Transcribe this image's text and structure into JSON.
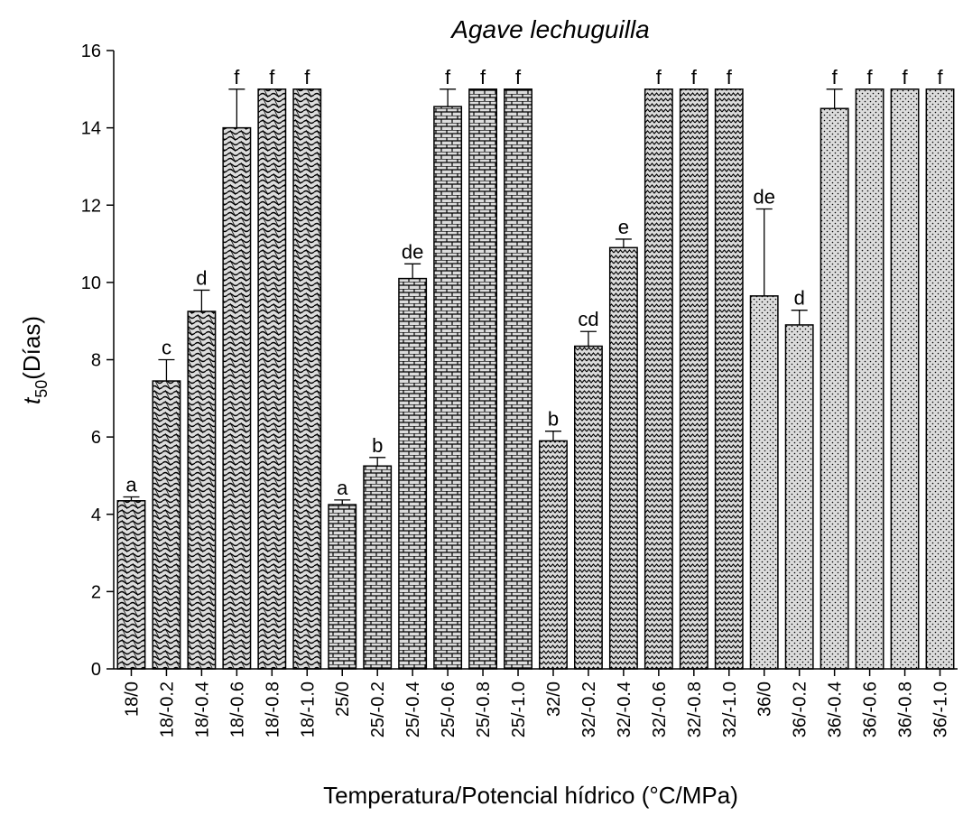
{
  "chart_data": {
    "type": "bar",
    "title": "Agave lechuguilla",
    "ylabel_main": "t",
    "ylabel_sub": "50",
    "ylabel_rest": "(Días)",
    "xlabel": "Temperatura/Potencial hídrico (°C/MPa)",
    "ylim": [
      0,
      16
    ],
    "yticks": [
      "0",
      "2",
      "4",
      "6",
      "8",
      "10",
      "12",
      "14",
      "16"
    ],
    "grid": false,
    "legend": "none",
    "categories": [
      "18/0",
      "18/-0.2",
      "18/-0.4",
      "18/-0.6",
      "18/-0.8",
      "18/-1.0",
      "25/0",
      "25/-0.2",
      "25/-0.4",
      "25/-0.6",
      "25/-0.8",
      "25/-1.0",
      "32/0",
      "32/-0.2",
      "32/-0.4",
      "32/-0.6",
      "32/-0.8",
      "32/-1.0",
      "36/0",
      "36/-0.2",
      "36/-0.4",
      "36/-0.6",
      "36/-0.8",
      "36/-1.0"
    ],
    "values": [
      4.35,
      7.45,
      9.25,
      14.0,
      15.0,
      15.0,
      4.25,
      5.25,
      10.1,
      14.55,
      15.0,
      15.0,
      5.9,
      8.35,
      10.9,
      15.0,
      15.0,
      15.0,
      9.65,
      8.9,
      14.5,
      15.0,
      15.0,
      15.0
    ],
    "errors": [
      0.1,
      0.55,
      0.55,
      1.0,
      0,
      0,
      0.12,
      0.22,
      0.38,
      0.45,
      0,
      0,
      0.25,
      0.38,
      0.22,
      0,
      0,
      0,
      2.25,
      0.38,
      0.5,
      0,
      0,
      0
    ],
    "significance": [
      "a",
      "c",
      "d",
      "f",
      "f",
      "f",
      "a",
      "b",
      "de",
      "f",
      "f",
      "f",
      "b",
      "cd",
      "e",
      "f",
      "f",
      "f",
      "de",
      "d",
      "f",
      "f",
      "f",
      "f"
    ],
    "group_patterns": [
      "wave",
      "brick",
      "zigzag",
      "dots"
    ],
    "colors": {
      "bar_fill": "#dcdcdc",
      "bar_stroke": "#000000",
      "pattern": "#000000"
    }
  }
}
